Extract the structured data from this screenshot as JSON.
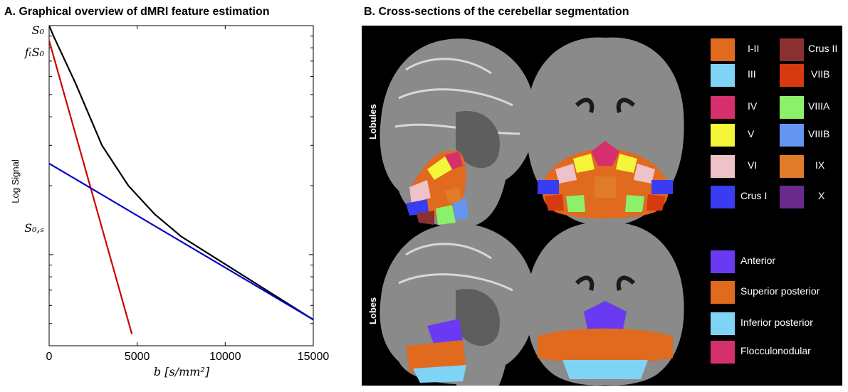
{
  "panel_a": {
    "title": "A. Graphical overview  of dMRI feature estimation"
  },
  "panel_b": {
    "title": "B. Cross-sections of the cerebellar segmentation",
    "row_labels": [
      "Lobules",
      "Lobes"
    ],
    "lobule_legend": [
      {
        "label": "I-II",
        "color": "#e06a1e"
      },
      {
        "label": "III",
        "color": "#7fd4f5"
      },
      {
        "label": "IV",
        "color": "#d62f6e"
      },
      {
        "label": "V",
        "color": "#f5f53a"
      },
      {
        "label": "VI",
        "color": "#efc1c9"
      },
      {
        "label": "Crus I",
        "color": "#3a3cf2"
      },
      {
        "label": "Crus II",
        "color": "#8b3030"
      },
      {
        "label": "VIIB",
        "color": "#d63a10"
      },
      {
        "label": "VIIIA",
        "color": "#8cf06a"
      },
      {
        "label": "VIIIB",
        "color": "#6495f0"
      },
      {
        "label": "IX",
        "color": "#e07b2a"
      },
      {
        "label": "X",
        "color": "#6a2a8c"
      }
    ],
    "lobe_legend": [
      {
        "label": "Anterior",
        "color": "#6a3af2"
      },
      {
        "label": "Superior posterior",
        "color": "#e06a1e"
      },
      {
        "label": "Inferior posterior",
        "color": "#7fd4f5"
      },
      {
        "label": "Flocculonodular",
        "color": "#d62f6e"
      }
    ]
  },
  "chart_data": {
    "type": "line",
    "xlabel": "b [s/mm²]",
    "ylabel": "Log Signal",
    "xlim": [
      0,
      15000
    ],
    "x_ticks": [
      "0",
      "5000",
      "10000",
      "15000"
    ],
    "y_tick_labels": [
      "S₀",
      "fₜS₀",
      "S₀,ₛ"
    ],
    "y_scale": "log",
    "grid": false,
    "series": [
      {
        "color": "#000000",
        "x": [
          0,
          250,
          1500,
          3000,
          4500,
          6000,
          7500,
          15000
        ],
        "y": [
          1.0,
          0.9,
          0.56,
          0.3,
          0.2,
          0.15,
          0.12,
          0.052
        ]
      },
      {
        "color": "#cc0000",
        "x": [
          0,
          4700
        ],
        "y": [
          0.86,
          0.045
        ]
      },
      {
        "color": "#0000cc",
        "x": [
          0,
          15000
        ],
        "y": [
          0.25,
          0.052
        ]
      }
    ]
  }
}
